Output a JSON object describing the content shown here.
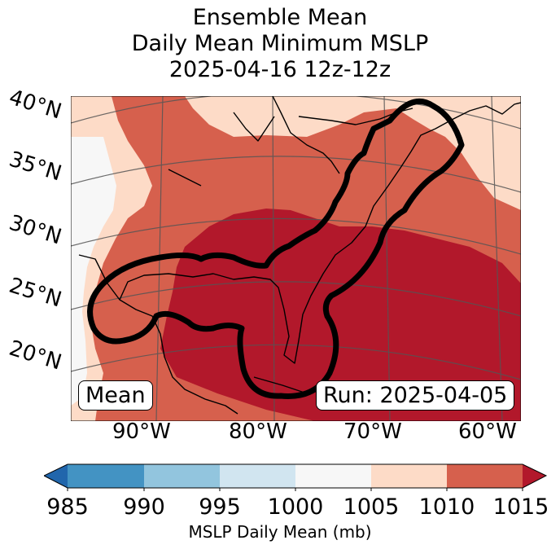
{
  "title": {
    "line1": "Ensemble Mean",
    "line2": "Daily Mean Minimum MSLP",
    "line3": "2025-04-16 12z-12z"
  },
  "map": {
    "lat_labels": [
      "40°N",
      "35°N",
      "30°N",
      "25°N",
      "20°N"
    ],
    "lon_labels": [
      "90°W",
      "80°W",
      "70°W",
      "60°W"
    ],
    "mean_label": "Mean",
    "run_label": "Run: 2025-04-05",
    "colors": {
      "c985": "#2166ac",
      "c990": "#4393c3",
      "c995": "#92c5de",
      "c1000": "#d1e5f0",
      "c1005": "#f7f7f7",
      "c1010": "#fddbc7",
      "c1015": "#d6604d",
      "c_over": "#b2182b"
    }
  },
  "colorbar": {
    "ticks": [
      "985",
      "990",
      "995",
      "1000",
      "1005",
      "1010",
      "1015"
    ],
    "label": "MSLP Daily Mean (mb)"
  }
}
